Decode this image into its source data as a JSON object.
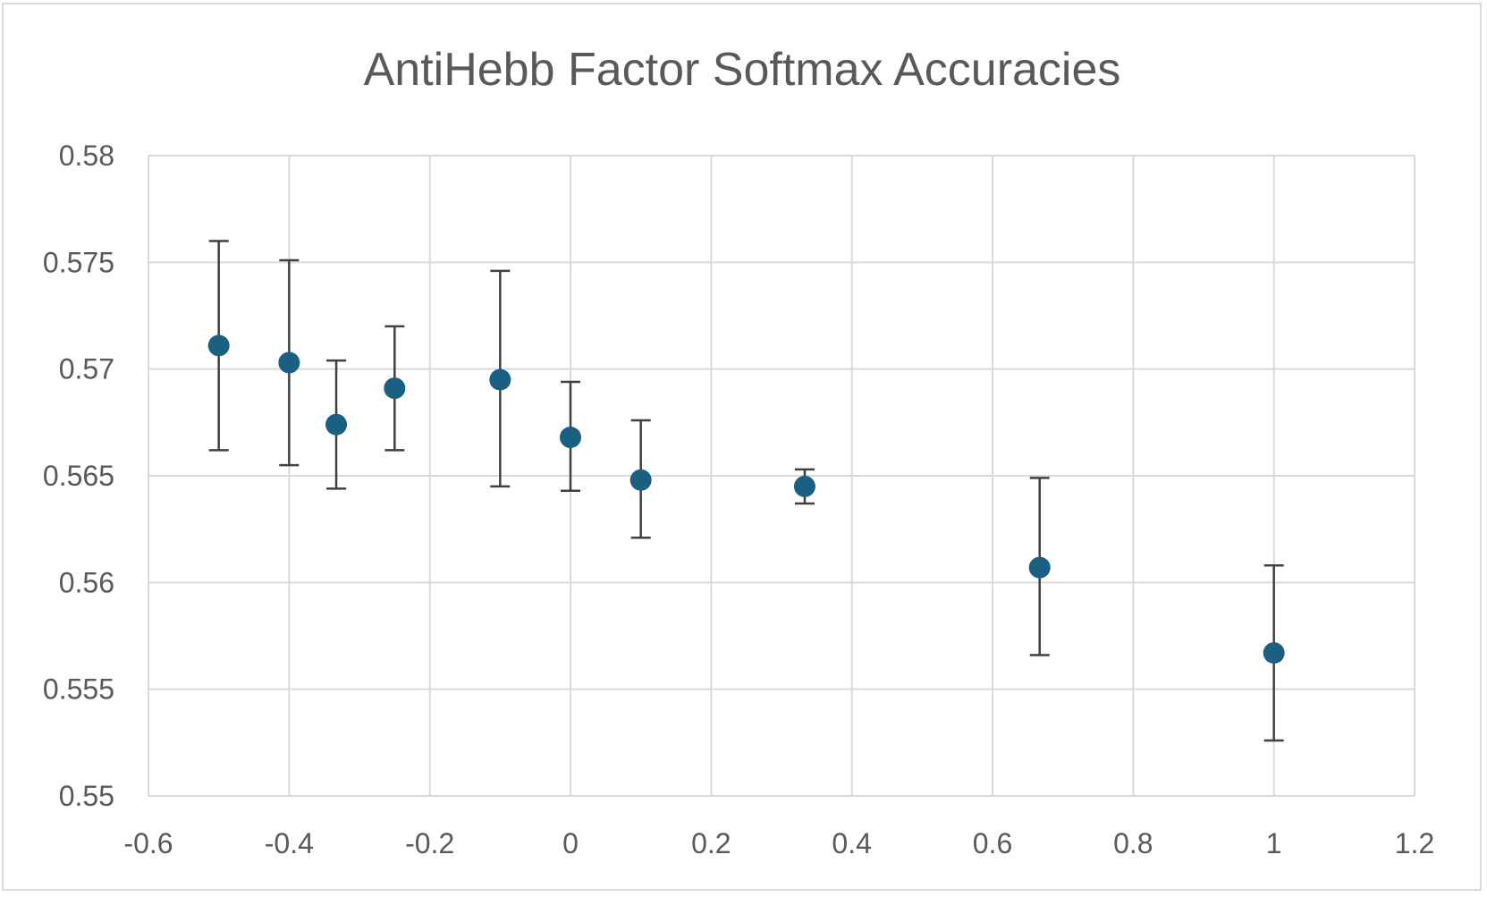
{
  "chart_data": {
    "type": "scatter",
    "title": "AntiHebb Factor Softmax Accuracies",
    "xlabel": "",
    "ylabel": "",
    "xlim": [
      -0.6,
      1.2
    ],
    "ylim": [
      0.55,
      0.58
    ],
    "x_ticks": [
      "-0.6",
      "-0.4",
      "-0.2",
      "0",
      "0.2",
      "0.4",
      "0.6",
      "0.8",
      "1",
      "1.2"
    ],
    "y_ticks": [
      "0.58",
      "0.575",
      "0.57",
      "0.565",
      "0.56",
      "0.555",
      "0.55"
    ],
    "grid": true,
    "legend": "none",
    "marker_color": "#1b5f83",
    "errorbar_color": "#404040",
    "points": [
      {
        "x": -0.5,
        "y": 0.5711,
        "err_low": 0.5662,
        "err_high": 0.576
      },
      {
        "x": -0.4,
        "y": 0.5703,
        "err_low": 0.5655,
        "err_high": 0.5751
      },
      {
        "x": -0.333,
        "y": 0.5674,
        "err_low": 0.5644,
        "err_high": 0.5704
      },
      {
        "x": -0.25,
        "y": 0.5691,
        "err_low": 0.5662,
        "err_high": 0.572
      },
      {
        "x": -0.1,
        "y": 0.5695,
        "err_low": 0.5645,
        "err_high": 0.5746
      },
      {
        "x": 0,
        "y": 0.5668,
        "err_low": 0.5643,
        "err_high": 0.5694
      },
      {
        "x": 0.1,
        "y": 0.5648,
        "err_low": 0.5621,
        "err_high": 0.5676
      },
      {
        "x": 0.333,
        "y": 0.5645,
        "err_low": 0.5637,
        "err_high": 0.5653
      },
      {
        "x": 0.667,
        "y": 0.5607,
        "err_low": 0.5566,
        "err_high": 0.5649
      },
      {
        "x": 1,
        "y": 0.5567,
        "err_low": 0.5526,
        "err_high": 0.5608
      }
    ]
  }
}
